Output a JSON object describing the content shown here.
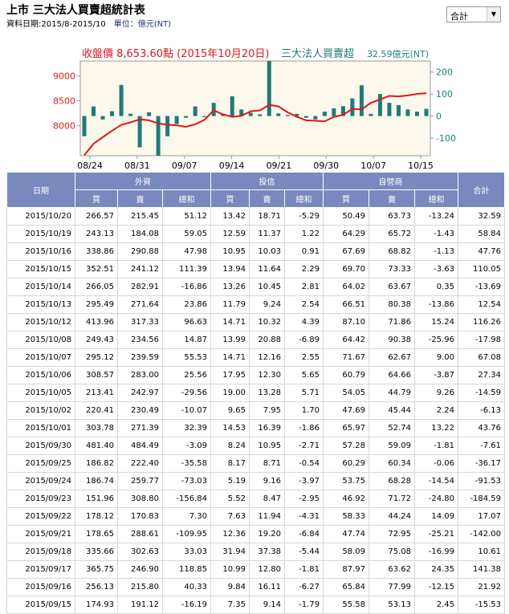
{
  "header": {
    "title": "上市 三大法人買賣超統計表",
    "date_range": "資料日期:2015/8-2015/10",
    "unit": "單位：億元(NT)",
    "select_value": "合計"
  },
  "chart_data": {
    "type": "bar+line",
    "title_left": "收盤價 8,653.60點 (2015年10月20日)",
    "title_right": "三大法人買賣超",
    "title_right_value": "32.59億元(NT)",
    "colors": {
      "line": "#e0161b",
      "bars": "#1d7b78",
      "axis_right": "#1d7b78",
      "axis_left": "#e0161b",
      "plot_bg": "#fdf8ec"
    },
    "x_tick_labels": [
      "08/24",
      "08/31",
      "09/07",
      "09/14",
      "09/21",
      "09/30",
      "10/07",
      "10/15"
    ],
    "y_left_ticks": [
      9000,
      8500,
      8000
    ],
    "y_right_ticks": [
      200,
      100,
      0,
      -100
    ],
    "y_left_range": [
      7400,
      9300
    ],
    "y_right_range": [
      -180,
      250
    ],
    "price_series": [
      7410,
      7640,
      7770,
      7900,
      8020,
      8070,
      8130,
      8110,
      8050,
      8020,
      8010,
      7980,
      8030,
      8120,
      8310,
      8230,
      8180,
      8200,
      8290,
      8310,
      8420,
      8390,
      8270,
      8180,
      8110,
      8100,
      8090,
      8180,
      8220,
      8340,
      8330,
      8460,
      8530,
      8600,
      8590,
      8610,
      8640,
      8653.6
    ],
    "bar_series": [
      -91.53,
      43.76,
      -15.53,
      21.92,
      141.38,
      10.61,
      -142.0,
      17.07,
      -184.59,
      -91.53,
      -36.17,
      -7.61,
      43.76,
      -4.4,
      60.0,
      10.0,
      90.0,
      30.0,
      15.0,
      8.0,
      280.0,
      12.0,
      5.0,
      10.0,
      -8.0,
      -15.0,
      20.0,
      35.0,
      45.0,
      80.0,
      140.0,
      10.0,
      100.0,
      60.0,
      50.0,
      30.0,
      20.0,
      32.59
    ]
  },
  "table": {
    "group_headers": {
      "date": "日期",
      "foreign": "外資",
      "trust": "投信",
      "dealer": "自營商",
      "total": "合計"
    },
    "sub_headers": [
      "買",
      "賣",
      "總和",
      "買",
      "賣",
      "總和",
      "買",
      "賣",
      "總和"
    ],
    "rows": [
      [
        "2015/10/20",
        "266.57",
        "215.45",
        "51.12",
        "13.42",
        "18.71",
        "-5.29",
        "50.49",
        "63.73",
        "-13.24",
        "32.59"
      ],
      [
        "2015/10/19",
        "243.13",
        "184.08",
        "59.05",
        "12.59",
        "11.37",
        "1.22",
        "64.29",
        "65.72",
        "-1.43",
        "58.84"
      ],
      [
        "2015/10/16",
        "338.86",
        "290.88",
        "47.98",
        "10.95",
        "10.03",
        "0.91",
        "67.69",
        "68.82",
        "-1.13",
        "47.76"
      ],
      [
        "2015/10/15",
        "352.51",
        "241.12",
        "111.39",
        "13.94",
        "11.64",
        "2.29",
        "69.70",
        "73.33",
        "-3.63",
        "110.05"
      ],
      [
        "2015/10/14",
        "266.05",
        "282.91",
        "-16.86",
        "13.26",
        "10.45",
        "2.81",
        "64.02",
        "63.67",
        "0.35",
        "-13.69"
      ],
      [
        "2015/10/13",
        "295.49",
        "271.64",
        "23.86",
        "11.79",
        "9.24",
        "2.54",
        "66.51",
        "80.38",
        "-13.86",
        "12.54"
      ],
      [
        "2015/10/12",
        "413.96",
        "317.33",
        "96.63",
        "14.71",
        "10.32",
        "4.39",
        "87.10",
        "71.86",
        "15.24",
        "116.26"
      ],
      [
        "2015/10/08",
        "249.43",
        "234.56",
        "14.87",
        "13.99",
        "20.88",
        "-6.89",
        "64.42",
        "90.38",
        "-25.96",
        "-17.98"
      ],
      [
        "2015/10/07",
        "295.12",
        "239.59",
        "55.53",
        "14.71",
        "12.16",
        "2.55",
        "71.67",
        "62.67",
        "9.00",
        "67.08"
      ],
      [
        "2015/10/06",
        "308.57",
        "283.00",
        "25.56",
        "17.95",
        "12.30",
        "5.65",
        "60.79",
        "64.66",
        "-3.87",
        "27.34"
      ],
      [
        "2015/10/05",
        "213.41",
        "242.97",
        "-29.56",
        "19.00",
        "13.28",
        "5.71",
        "54.05",
        "44.79",
        "9.26",
        "-14.59"
      ],
      [
        "2015/10/02",
        "220.41",
        "230.49",
        "-10.07",
        "9.65",
        "7.95",
        "1.70",
        "47.69",
        "45.44",
        "2.24",
        "-6.13"
      ],
      [
        "2015/10/01",
        "303.78",
        "271.39",
        "32.39",
        "14.53",
        "16.39",
        "-1.86",
        "65.97",
        "52.74",
        "13.22",
        "43.76"
      ],
      [
        "2015/09/30",
        "481.40",
        "484.49",
        "-3.09",
        "8.24",
        "10.95",
        "-2.71",
        "57.28",
        "59.09",
        "-1.81",
        "-7.61"
      ],
      [
        "2015/09/25",
        "186.82",
        "222.40",
        "-35.58",
        "8.17",
        "8.71",
        "-0.54",
        "60.29",
        "60.34",
        "-0.06",
        "-36.17"
      ],
      [
        "2015/09/24",
        "186.74",
        "259.77",
        "-73.03",
        "5.19",
        "9.16",
        "-3.97",
        "53.75",
        "68.28",
        "-14.54",
        "-91.53"
      ],
      [
        "2015/09/23",
        "151.96",
        "308.80",
        "-156.84",
        "5.52",
        "8.47",
        "-2.95",
        "46.92",
        "71.72",
        "-24.80",
        "-184.59"
      ],
      [
        "2015/09/22",
        "178.12",
        "170.83",
        "7.30",
        "7.63",
        "11.94",
        "-4.31",
        "58.33",
        "44.24",
        "14.09",
        "17.07"
      ],
      [
        "2015/09/21",
        "178.65",
        "288.61",
        "-109.95",
        "12.36",
        "19.20",
        "-6.84",
        "47.74",
        "72.95",
        "-25.21",
        "-142.00"
      ],
      [
        "2015/09/18",
        "335.66",
        "302.63",
        "33.03",
        "31.94",
        "37.38",
        "-5.44",
        "58.09",
        "75.08",
        "-16.99",
        "10.61"
      ],
      [
        "2015/09/17",
        "365.75",
        "246.90",
        "118.85",
        "10.99",
        "12.80",
        "-1.81",
        "87.97",
        "63.62",
        "24.35",
        "141.38"
      ],
      [
        "2015/09/16",
        "256.13",
        "215.80",
        "40.33",
        "9.84",
        "16.11",
        "-6.27",
        "65.84",
        "77.99",
        "-12.15",
        "21.92"
      ],
      [
        "2015/09/15",
        "174.93",
        "191.12",
        "-16.19",
        "7.35",
        "9.14",
        "-1.79",
        "55.58",
        "53.13",
        "2.45",
        "-15.53"
      ]
    ]
  }
}
